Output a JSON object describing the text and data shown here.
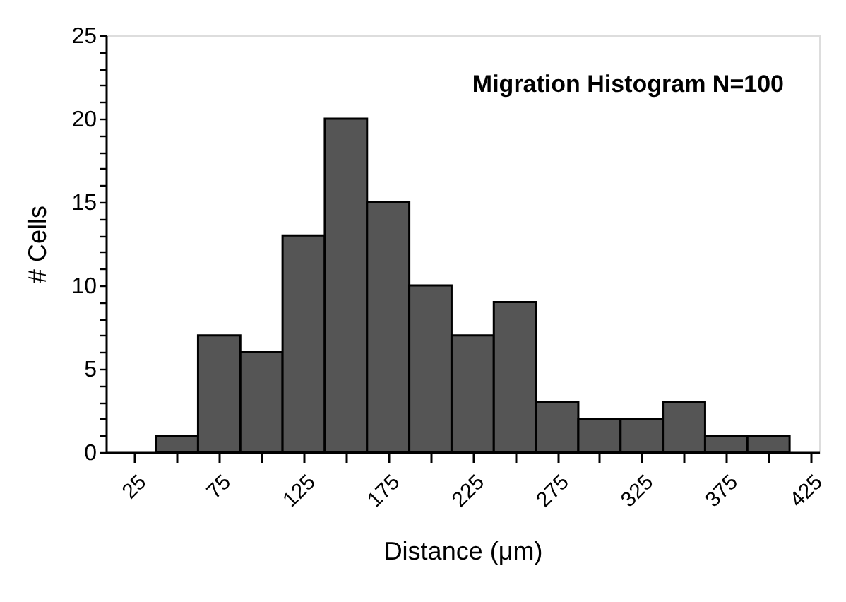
{
  "chart_data": {
    "type": "histogram",
    "title": "Migration Histogram N=100",
    "xlabel": "Distance (μm)",
    "ylabel": "# Cells",
    "bins": [
      37.5,
      62.5,
      87.5,
      112.5,
      137.5,
      162.5,
      187.5,
      212.5,
      237.5,
      262.5,
      287.5,
      312.5,
      337.5,
      362.5,
      387.5,
      412.5
    ],
    "values": [
      1,
      7,
      6,
      13,
      20,
      15,
      10,
      7,
      9,
      3,
      2,
      2,
      3,
      1,
      1
    ],
    "color": "#555555",
    "xlim": [
      8,
      430
    ],
    "ylim": [
      0,
      25
    ],
    "xticks": [
      25,
      {
        "value": 50,
        "label": null
      },
      75,
      {
        "value": 100,
        "label": null
      },
      125,
      {
        "value": 150,
        "label": null
      },
      175,
      {
        "value": 200,
        "label": null
      },
      225,
      {
        "value": 250,
        "label": null
      },
      275,
      {
        "value": 300,
        "label": null
      },
      325,
      {
        "value": 350,
        "label": null
      },
      375,
      {
        "value": 400,
        "label": null
      },
      425
    ],
    "yticks": [
      0,
      {
        "value": 1,
        "label": null
      },
      {
        "value": 2,
        "label": null
      },
      {
        "value": 3,
        "label": null
      },
      {
        "value": 4,
        "label": null
      },
      5,
      {
        "value": 6,
        "label": null
      },
      {
        "value": 7,
        "label": null
      },
      {
        "value": 8,
        "label": null
      },
      {
        "value": 9,
        "label": null
      },
      10,
      {
        "value": 11,
        "label": null
      },
      {
        "value": 12,
        "label": null
      },
      {
        "value": 13,
        "label": null
      },
      {
        "value": 14,
        "label": null
      },
      15,
      {
        "value": 16,
        "label": null
      },
      {
        "value": 17,
        "label": null
      },
      {
        "value": 18,
        "label": null
      },
      {
        "value": 19,
        "label": null
      },
      20,
      {
        "value": 21,
        "label": null
      },
      {
        "value": 22,
        "label": null
      },
      {
        "value": 23,
        "label": null
      },
      {
        "value": 24,
        "label": null
      },
      25
    ],
    "grid": false
  }
}
